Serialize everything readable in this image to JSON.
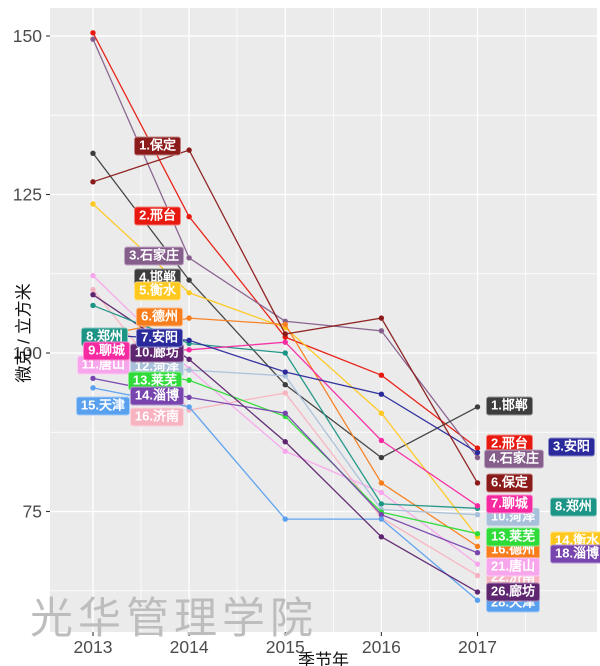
{
  "watermark": "光华管理学院",
  "chart_data": {
    "type": "line",
    "title": "",
    "xlabel": "季节年",
    "ylabel": "微克 / 立方米",
    "x": [
      2013,
      2014,
      2015,
      2016,
      2017
    ],
    "x_tick_labels": [
      "2013",
      "2014",
      "2015",
      "2016",
      "2017"
    ],
    "y_ticks": [
      75,
      100,
      125,
      150
    ],
    "ylim": [
      56,
      154.5
    ],
    "grid": true,
    "panel_bg": "#EBEBEB",
    "grid_color": "#FFFFFF",
    "axis_text_color": "#4c4c4c",
    "series": [
      {
        "key": "xingtai",
        "name": "邢台",
        "color": "#E8190F",
        "values": [
          150.5,
          121.5,
          102.5,
          96.5,
          85
        ],
        "left_label": {
          "text": "2.邢台",
          "px": [
            181,
            216
          ],
          "side": "left"
        },
        "right_label": {
          "text": "2.邢台",
          "px": [
            486,
            444
          ],
          "side": "right"
        }
      },
      {
        "key": "shijiazhuang",
        "name": "石家庄",
        "color": "#865E8C",
        "values": [
          149.5,
          115,
          105,
          103.5,
          83.5
        ],
        "left_label": {
          "text": "3.石家庄",
          "px": [
            184,
            256
          ],
          "side": "left"
        },
        "right_label": {
          "text": "4.石家庄",
          "px": [
            484,
            459
          ],
          "side": "right"
        }
      },
      {
        "key": "handan",
        "name": "邯郸",
        "color": "#3D3D3D",
        "values": [
          131.5,
          111.5,
          95,
          83.5,
          91.5
        ],
        "left_label": {
          "text": "4.邯郸",
          "px": [
            181,
            278
          ],
          "side": "left"
        },
        "right_label": {
          "text": "1.邯郸",
          "px": [
            486,
            406
          ],
          "side": "right"
        }
      },
      {
        "key": "hengshui",
        "name": "衡水",
        "color": "#FFC81E",
        "values": [
          123.5,
          109.5,
          104,
          90.5,
          71
        ],
        "left_label": {
          "text": "5.衡水",
          "px": [
            181,
            291
          ],
          "side": "left"
        },
        "right_label": {
          "text": "14.衡水",
          "px": [
            550,
            541
          ],
          "side": "right"
        }
      },
      {
        "key": "dezhou",
        "name": "德州",
        "color": "#F87E1D",
        "values": [
          102.5,
          105.5,
          104.5,
          79.5,
          69.5
        ],
        "left_label": {
          "text": "6.德州",
          "px": [
            183,
            317
          ],
          "side": "left"
        },
        "right_label": {
          "text": "16.德州",
          "px": [
            486,
            550
          ],
          "side": "right"
        }
      },
      {
        "key": "jinan",
        "name": "济南",
        "color": "#F8B3C0",
        "values": [
          110,
          91,
          93.7,
          74,
          64.9
        ],
        "left_label": {
          "text": "16.济南",
          "px": [
            184,
            417
          ],
          "side": "left"
        },
        "right_label": {
          "text": "22.济南",
          "px": [
            486,
            578
          ],
          "side": "right"
        }
      },
      {
        "key": "tangshan",
        "name": "唐山",
        "color": "#F8A6EC",
        "values": [
          112.2,
          97.5,
          84.5,
          78,
          66.7
        ],
        "left_label": {
          "text": "11.唐山",
          "px": [
            130,
            365
          ],
          "side": "left"
        },
        "right_label": {
          "text": "21.唐山",
          "px": [
            486,
            567
          ],
          "side": "right"
        }
      },
      {
        "key": "heze",
        "name": "菏泽",
        "color": "#A8C0DA",
        "values": [
          99.5,
          97.3,
          96.4,
          75.3,
          74.5
        ],
        "left_label": {
          "text": "12.菏泽",
          "px": [
            184,
            367
          ],
          "side": "left"
        },
        "right_label": {
          "text": "10.菏泽",
          "px": [
            486,
            517
          ],
          "side": "right"
        }
      },
      {
        "key": "laiwu",
        "name": "莱芜",
        "color": "#2EDB38",
        "values": [
          98,
          95.7,
          90,
          74.9,
          71.5
        ],
        "left_label": {
          "text": "13.莱芜",
          "px": [
            182,
            381
          ],
          "side": "left"
        },
        "right_label": {
          "text": "13.莱芜",
          "px": [
            486,
            537
          ],
          "side": "right"
        }
      },
      {
        "key": "zibo",
        "name": "淄博",
        "color": "#7845AE",
        "values": [
          96,
          93,
          90.5,
          74.5,
          68.5
        ],
        "left_label": {
          "text": "14.淄博",
          "px": [
            184,
            396
          ],
          "side": "left"
        },
        "right_label": {
          "text": "18.淄博",
          "px": [
            550,
            554
          ],
          "side": "right"
        }
      },
      {
        "key": "tianjin",
        "name": "天津",
        "color": "#59A0EE",
        "values": [
          94.5,
          91.5,
          73.8,
          73.8,
          61
        ],
        "left_label": {
          "text": "15.天津",
          "px": [
            130,
            406
          ],
          "side": "left"
        },
        "right_label": {
          "text": "28.天津",
          "px": [
            486,
            603
          ],
          "side": "right"
        }
      },
      {
        "key": "langfang",
        "name": "廊坊",
        "color": "#5E2570",
        "values": [
          109.2,
          99,
          86,
          71,
          62.3
        ],
        "left_label": {
          "text": "10.廊坊",
          "px": [
            184,
            353
          ],
          "side": "left"
        },
        "right_label": {
          "text": "26.廊坊",
          "px": [
            486,
            592
          ],
          "side": "right"
        }
      },
      {
        "key": "zhengzhou",
        "name": "郑州",
        "color": "#1C9486",
        "values": [
          107.5,
          101.5,
          100,
          76.2,
          75.5
        ],
        "left_label": {
          "text": "8.郑州",
          "px": [
            128,
            337
          ],
          "side": "left"
        },
        "right_label": {
          "text": "8.郑州",
          "px": [
            550,
            507
          ],
          "side": "right"
        }
      },
      {
        "key": "liaocheng",
        "name": "聊城",
        "color": "#F72AA2",
        "values": [
          100.2,
          100.5,
          101.7,
          86.2,
          75.9
        ],
        "left_label": {
          "text": "9.聊城",
          "px": [
            130,
            351
          ],
          "side": "left"
        },
        "right_label": {
          "text": "7.聊城",
          "px": [
            486,
            504
          ],
          "side": "right"
        }
      },
      {
        "key": "anyang",
        "name": "安阳",
        "color": "#2A2A9C",
        "values": [
          103,
          102,
          97,
          93.5,
          84.3
        ],
        "left_label": {
          "text": "7.安阳",
          "px": [
            183,
            338
          ],
          "side": "left"
        },
        "right_label": {
          "text": "3.安阳",
          "px": [
            548,
            447
          ],
          "side": "right"
        }
      },
      {
        "key": "baoding",
        "name": "保定",
        "color": "#8B1A1A",
        "values": [
          127,
          132,
          103,
          105.5,
          79.5
        ],
        "left_label": {
          "text": "1.保定",
          "px": [
            181,
            146
          ],
          "side": "left"
        },
        "right_label": {
          "text": "6.保定",
          "px": [
            486,
            483
          ],
          "side": "right"
        }
      }
    ]
  }
}
